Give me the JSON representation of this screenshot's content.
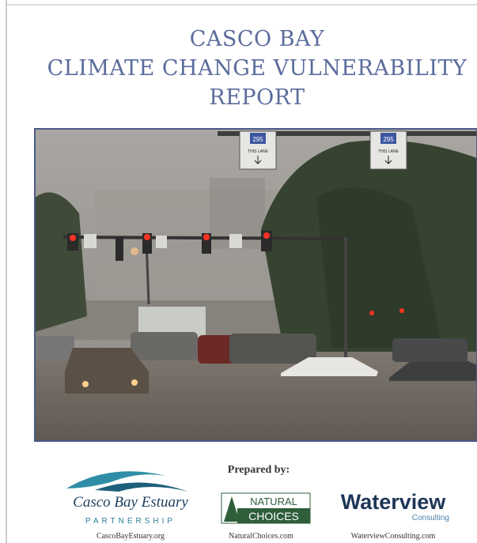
{
  "header": {
    "title_lines": [
      "CASCO BAY",
      "CLIMATE CHANGE VULNERABILITY",
      "REPORT"
    ]
  },
  "photo": {
    "signs": [
      {
        "route": "295",
        "text": "THIS LANE"
      },
      {
        "route": "295",
        "text": "THIS LANE"
      }
    ]
  },
  "footer": {
    "prepared_by": "Prepared by:",
    "partners": [
      {
        "name": "Casco Bay Estuary",
        "subname": "PARTNERSHIP",
        "url": "CascoBayEstuary.org"
      },
      {
        "name": "NATURAL",
        "subname": "CHOICES",
        "url": "NaturalChoices.com"
      },
      {
        "name": "Waterview",
        "subname": "Consulting",
        "url": "WaterviewConsulting.com"
      }
    ]
  }
}
